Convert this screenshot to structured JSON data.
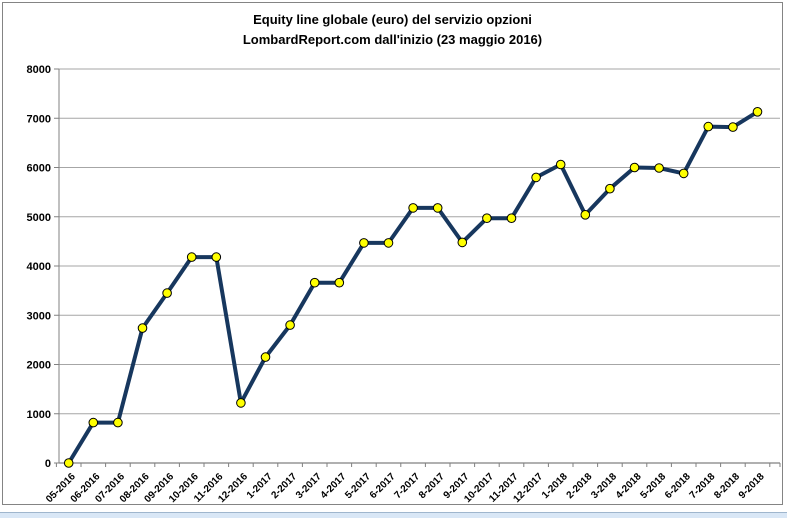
{
  "chart": {
    "title_line1": "Equity line globale (euro) del servizio opzioni",
    "title_line2": "LombardReport.com dall'inizio (23 maggio 2016)"
  },
  "chart_data": {
    "type": "line",
    "title": "Equity line globale (euro) del servizio opzioni LombardReport.com dall'inizio (23 maggio 2016)",
    "categories": [
      "05-2016",
      "06-2016",
      "07-2016",
      "08-2016",
      "09-2016",
      "10-2016",
      "11-2016",
      "12-2016",
      "1-2017",
      "2-2017",
      "3-2017",
      "4-2017",
      "5-2017",
      "6-2017",
      "7-2017",
      "8-2017",
      "9-2017",
      "10-2017",
      "11-2017",
      "12-2017",
      "1-2018",
      "2-2018",
      "3-2018",
      "4-2018",
      "5-2018",
      "6-2018",
      "7-2018",
      "8-2018",
      "9-2018"
    ],
    "values": [
      0,
      820,
      820,
      2740,
      3450,
      4180,
      4180,
      1220,
      2150,
      2800,
      3660,
      3660,
      4470,
      4470,
      5180,
      5180,
      4480,
      4970,
      4970,
      5800,
      6060,
      5040,
      5570,
      6000,
      5990,
      5880,
      6830,
      6820,
      7130
    ],
    "xlabel": "",
    "ylabel": "",
    "ylim": [
      0,
      8000
    ],
    "ytick_step": 1000,
    "grid": true,
    "legend_position": "none",
    "colors": {
      "line": "#17375E",
      "marker_fill": "#FFFF00",
      "marker_stroke": "#000000",
      "gridline": "#A6A6A6",
      "axis": "#808080",
      "text": "#000000",
      "panel_border": "#848484",
      "bottom_strip": "#D9E7F6"
    }
  }
}
